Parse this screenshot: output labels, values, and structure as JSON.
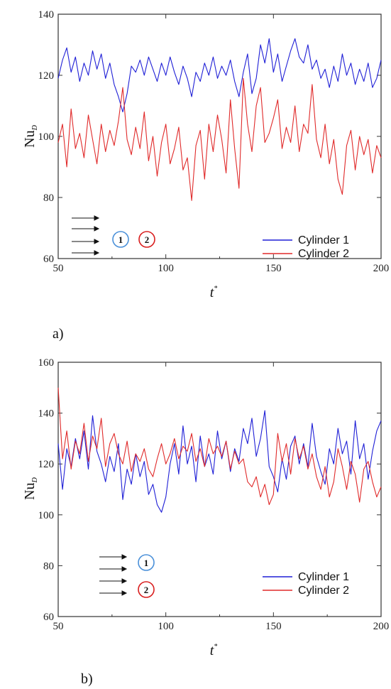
{
  "chart_data": [
    {
      "type": "line",
      "panel_label": "a)",
      "ylabel_main": "Nu",
      "ylabel_sub": "D",
      "xlabel_main": "t",
      "xlabel_sup": "*",
      "xlim": [
        50,
        200
      ],
      "ylim": [
        60,
        140
      ],
      "xticks": [
        50,
        100,
        150,
        200
      ],
      "yticks": [
        60,
        80,
        100,
        120,
        140
      ],
      "legend_position": "bottom-right",
      "inset_labels": [
        "1",
        "2"
      ],
      "inset_layout": "tandem",
      "series": [
        {
          "name": "Cylinder 1",
          "color": "#1f1fd6",
          "x": [
            50,
            52,
            54,
            56,
            58,
            60,
            62,
            64,
            66,
            68,
            70,
            72,
            74,
            76,
            78,
            80,
            82,
            84,
            86,
            88,
            90,
            92,
            94,
            96,
            98,
            100,
            102,
            104,
            106,
            108,
            110,
            112,
            114,
            116,
            118,
            120,
            122,
            124,
            126,
            128,
            130,
            132,
            134,
            136,
            138,
            140,
            142,
            144,
            146,
            148,
            150,
            152,
            154,
            156,
            158,
            160,
            162,
            164,
            166,
            168,
            170,
            172,
            174,
            176,
            178,
            180,
            182,
            184,
            186,
            188,
            190,
            192,
            194,
            196,
            198,
            200
          ],
          "y": [
            119,
            125,
            129,
            121,
            126,
            118,
            124,
            120,
            128,
            122,
            127,
            119,
            124,
            117,
            113,
            108,
            114,
            123,
            121,
            125,
            120,
            126,
            122,
            118,
            124,
            120,
            126,
            121,
            117,
            123,
            119,
            113,
            121,
            118,
            124,
            120,
            126,
            119,
            123,
            120,
            125,
            118,
            113,
            121,
            127,
            114,
            119,
            130,
            124,
            132,
            121,
            127,
            118,
            123,
            128,
            132,
            126,
            124,
            130,
            122,
            125,
            119,
            122,
            116,
            123,
            118,
            127,
            120,
            124,
            117,
            122,
            118,
            124,
            116,
            119,
            125
          ]
        },
        {
          "name": "Cylinder 2",
          "color": "#e02a2a",
          "x": [
            50,
            52,
            54,
            56,
            58,
            60,
            62,
            64,
            66,
            68,
            70,
            72,
            74,
            76,
            78,
            80,
            82,
            84,
            86,
            88,
            90,
            92,
            94,
            96,
            98,
            100,
            102,
            104,
            106,
            108,
            110,
            112,
            114,
            116,
            118,
            120,
            122,
            124,
            126,
            128,
            130,
            132,
            134,
            136,
            138,
            140,
            142,
            144,
            146,
            148,
            150,
            152,
            154,
            156,
            158,
            160,
            162,
            164,
            166,
            168,
            170,
            172,
            174,
            176,
            178,
            180,
            182,
            184,
            186,
            188,
            190,
            192,
            194,
            196,
            198,
            200
          ],
          "y": [
            98,
            104,
            90,
            109,
            96,
            101,
            93,
            107,
            99,
            91,
            104,
            95,
            102,
            97,
            105,
            116,
            99,
            94,
            103,
            96,
            108,
            92,
            100,
            87,
            98,
            104,
            91,
            96,
            103,
            89,
            93,
            79,
            97,
            102,
            86,
            104,
            95,
            107,
            99,
            88,
            112,
            96,
            83,
            119,
            104,
            95,
            110,
            116,
            98,
            101,
            106,
            112,
            96,
            103,
            98,
            110,
            95,
            104,
            101,
            117,
            99,
            93,
            104,
            91,
            99,
            86,
            81,
            97,
            102,
            89,
            100,
            94,
            99,
            88,
            97,
            93
          ]
        }
      ]
    },
    {
      "type": "line",
      "panel_label": "b)",
      "ylabel_main": "Nu",
      "ylabel_sub": "D",
      "xlabel_main": "t",
      "xlabel_sup": "*",
      "xlim": [
        50,
        200
      ],
      "ylim": [
        60,
        160
      ],
      "xticks": [
        50,
        100,
        150,
        200
      ],
      "yticks": [
        60,
        80,
        100,
        120,
        140,
        160
      ],
      "legend_position": "bottom-right",
      "inset_labels": [
        "1",
        "2"
      ],
      "inset_layout": "side-by-side",
      "series": [
        {
          "name": "Cylinder 1",
          "color": "#1f1fd6",
          "x": [
            50,
            52,
            54,
            56,
            58,
            60,
            62,
            64,
            66,
            68,
            70,
            72,
            74,
            76,
            78,
            80,
            82,
            84,
            86,
            88,
            90,
            92,
            94,
            96,
            98,
            100,
            102,
            104,
            106,
            108,
            110,
            112,
            114,
            116,
            118,
            120,
            122,
            124,
            126,
            128,
            130,
            132,
            134,
            136,
            138,
            140,
            142,
            144,
            146,
            148,
            150,
            152,
            154,
            156,
            158,
            160,
            162,
            164,
            166,
            168,
            170,
            172,
            174,
            176,
            178,
            180,
            182,
            184,
            186,
            188,
            190,
            192,
            194,
            196,
            198,
            200
          ],
          "y": [
            128,
            110,
            126,
            119,
            130,
            122,
            133,
            118,
            139,
            125,
            120,
            113,
            123,
            117,
            128,
            106,
            118,
            112,
            124,
            115,
            121,
            108,
            112,
            104,
            101,
            107,
            120,
            128,
            116,
            135,
            120,
            127,
            113,
            131,
            119,
            124,
            116,
            133,
            122,
            129,
            117,
            126,
            121,
            134,
            128,
            138,
            123,
            130,
            141,
            119,
            115,
            109,
            122,
            114,
            127,
            131,
            120,
            128,
            119,
            136,
            123,
            117,
            112,
            126,
            120,
            134,
            124,
            129,
            116,
            137,
            122,
            128,
            114,
            125,
            133,
            137
          ]
        },
        {
          "name": "Cylinder 2",
          "color": "#e02a2a",
          "x": [
            50,
            52,
            54,
            56,
            58,
            60,
            62,
            64,
            66,
            68,
            70,
            72,
            74,
            76,
            78,
            80,
            82,
            84,
            86,
            88,
            90,
            92,
            94,
            96,
            98,
            100,
            102,
            104,
            106,
            108,
            110,
            112,
            114,
            116,
            118,
            120,
            122,
            124,
            126,
            128,
            130,
            132,
            134,
            136,
            138,
            140,
            142,
            144,
            146,
            148,
            150,
            152,
            154,
            156,
            158,
            160,
            162,
            164,
            166,
            168,
            170,
            172,
            174,
            176,
            178,
            180,
            182,
            184,
            186,
            188,
            190,
            192,
            194,
            196,
            198,
            200
          ],
          "y": [
            150,
            122,
            133,
            118,
            129,
            124,
            136,
            121,
            131,
            126,
            138,
            119,
            128,
            132,
            124,
            120,
            129,
            117,
            124,
            121,
            126,
            118,
            115,
            122,
            128,
            120,
            124,
            130,
            122,
            127,
            125,
            132,
            121,
            126,
            119,
            130,
            124,
            127,
            123,
            129,
            118,
            125,
            120,
            122,
            113,
            111,
            115,
            107,
            112,
            104,
            108,
            132,
            121,
            128,
            116,
            130,
            122,
            127,
            118,
            124,
            115,
            110,
            119,
            107,
            113,
            126,
            119,
            110,
            121,
            116,
            105,
            118,
            121,
            113,
            107,
            111
          ]
        }
      ]
    }
  ]
}
